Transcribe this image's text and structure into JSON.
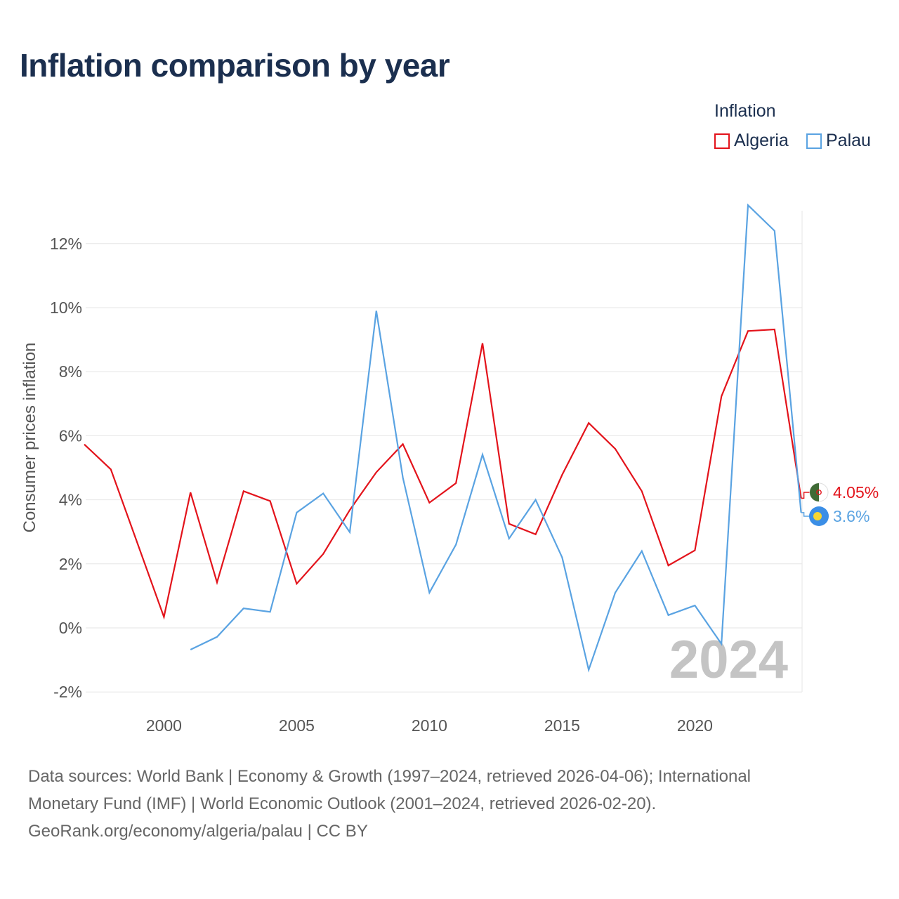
{
  "colors": {
    "algeria": "#e3131b",
    "palau": "#5aa3e2",
    "grid": "#e6e6e6",
    "tick": "#555555",
    "title": "#1b2f4f",
    "year_watermark": "#c4c4c4"
  },
  "title": "Inflation comparison by year",
  "legend": {
    "title": "Inflation",
    "items": [
      "Algeria",
      "Palau"
    ]
  },
  "chart_data": {
    "type": "line",
    "ylabel": "Consumer prices inflation",
    "xlabel": "",
    "ylim": [
      -2.2,
      13.5
    ],
    "xlim": [
      1997,
      2024.5
    ],
    "x_ticks": [
      2000,
      2005,
      2010,
      2015,
      2020
    ],
    "x_tick_labels": [
      "2000",
      "2005",
      "2010",
      "2015",
      "2020"
    ],
    "y_ticks": [
      -2,
      0,
      2,
      4,
      6,
      8,
      10,
      12
    ],
    "y_tick_labels": [
      "-2%",
      "0%",
      "2%",
      "4%",
      "6%",
      "8%",
      "10%",
      "12%"
    ],
    "grid": true,
    "legend_position": "top-right",
    "year_label": "2024",
    "series": [
      {
        "name": "Algeria",
        "color": "#e3131b",
        "end_label": "4.05%",
        "x": [
          1997,
          1998,
          1999,
          2000,
          2001,
          2002,
          2003,
          2004,
          2005,
          2006,
          2007,
          2008,
          2009,
          2010,
          2011,
          2012,
          2013,
          2014,
          2015,
          2016,
          2017,
          2018,
          2019,
          2020,
          2021,
          2022,
          2023,
          2024
        ],
        "values": [
          5.73,
          4.95,
          2.65,
          0.34,
          4.23,
          1.42,
          4.27,
          3.96,
          1.38,
          2.31,
          3.68,
          4.86,
          5.74,
          3.91,
          4.52,
          8.89,
          3.25,
          2.92,
          4.78,
          6.4,
          5.59,
          4.27,
          1.95,
          2.42,
          7.23,
          9.27,
          9.32,
          4.05
        ]
      },
      {
        "name": "Palau",
        "color": "#5aa3e2",
        "end_label": "3.6%",
        "x": [
          2001,
          2002,
          2003,
          2004,
          2005,
          2006,
          2007,
          2008,
          2009,
          2010,
          2011,
          2012,
          2013,
          2014,
          2015,
          2016,
          2017,
          2018,
          2019,
          2020,
          2021,
          2022,
          2023,
          2024
        ],
        "values": [
          -0.68,
          -0.28,
          0.61,
          0.5,
          3.6,
          4.2,
          2.99,
          9.9,
          4.69,
          1.1,
          2.6,
          5.41,
          2.79,
          4.0,
          2.2,
          -1.31,
          1.1,
          2.4,
          0.4,
          0.7,
          -0.5,
          13.2,
          12.4,
          3.6
        ]
      }
    ]
  },
  "footer": {
    "line1": "Data sources: World Bank | Economy & Growth (1997–2024, retrieved 2026-04-06); International",
    "line2": "Monetary Fund (IMF) | World Economic Outlook (2001–2024, retrieved 2026-02-20).",
    "line3": "GeoRank.org/economy/algeria/palau | CC BY"
  }
}
